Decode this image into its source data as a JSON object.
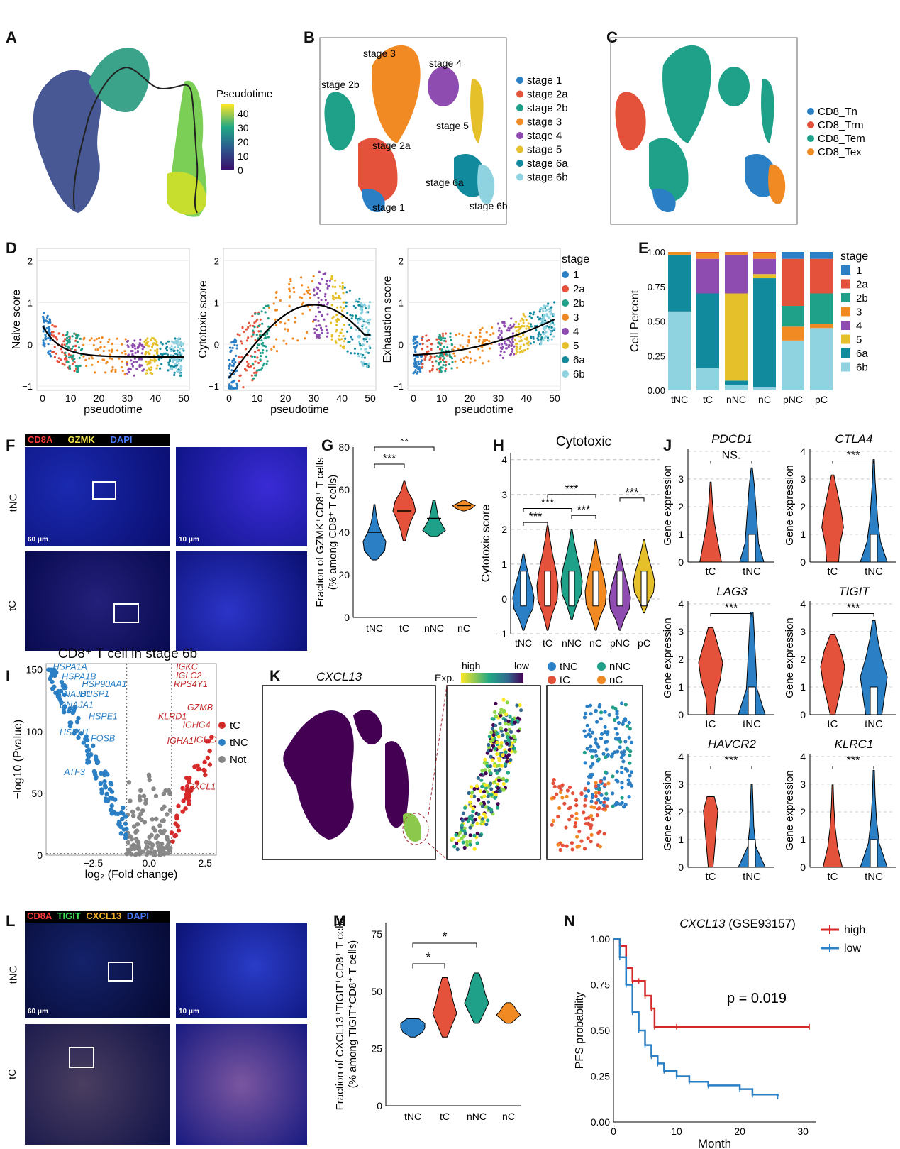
{
  "panels": {
    "A": {
      "letter": "A",
      "legend_title": "Pseudotime",
      "legend_ticks": [
        "40",
        "30",
        "20",
        "10",
        "0"
      ]
    },
    "B": {
      "letter": "B",
      "stages": [
        {
          "label": "stage 1",
          "color": "#2b7fc4"
        },
        {
          "label": "stage 2a",
          "color": "#e4523b"
        },
        {
          "label": "stage 2b",
          "color": "#1fa088"
        },
        {
          "label": "stage 3",
          "color": "#f28a23"
        },
        {
          "label": "stage 4",
          "color": "#8e4bb0"
        },
        {
          "label": "stage 5",
          "color": "#e6c02a"
        },
        {
          "label": "stage 6a",
          "color": "#128a9e"
        },
        {
          "label": "stage 6b",
          "color": "#8fd2e0"
        }
      ],
      "cluster_labels": [
        "stage 3",
        "stage 4",
        "stage 2b",
        "stage 5",
        "stage 2a",
        "stage 6a",
        "stage 1",
        "stage 6b"
      ]
    },
    "C": {
      "letter": "C",
      "types": [
        {
          "label": "CD8_Tn",
          "color": "#2b7fc4"
        },
        {
          "label": "CD8_Trm",
          "color": "#e4523b"
        },
        {
          "label": "CD8_Tem",
          "color": "#1fa088"
        },
        {
          "label": "CD8_Tex",
          "color": "#f28a23"
        }
      ]
    },
    "D": {
      "letter": "D",
      "legend_title": "stage",
      "legend_items": [
        "1",
        "2a",
        "2b",
        "3",
        "4",
        "5",
        "6a",
        "6b"
      ],
      "plots": [
        {
          "ylabel": "Naive score",
          "xlabel": "pseudotime",
          "yticks": [
            "2",
            "1",
            "0",
            "−1"
          ],
          "xticks": [
            "0",
            "10",
            "20",
            "30",
            "40",
            "50"
          ]
        },
        {
          "ylabel": "Cytotoxic score",
          "xlabel": "pseudotime",
          "yticks": [
            "2",
            "1",
            "0",
            "−1"
          ],
          "xticks": [
            "0",
            "10",
            "20",
            "30",
            "40",
            "50"
          ]
        },
        {
          "ylabel": "Exhaustion score",
          "xlabel": "pseudotime",
          "yticks": [
            "2",
            "1",
            "0",
            "−1"
          ],
          "xticks": [
            "0",
            "10",
            "20",
            "30",
            "40",
            "50"
          ]
        }
      ]
    },
    "E": {
      "letter": "E",
      "ylabel": "Cell Percent",
      "legend_title": "stage",
      "yticks": [
        "1.00",
        "0.75",
        "0.50",
        "0.25",
        "0.00"
      ]
    },
    "F": {
      "letter": "F",
      "stain": [
        "CD8A",
        "GZMK",
        "DAPI"
      ],
      "rows": [
        "tNC",
        "tC"
      ],
      "scale_big": "60 μm",
      "scale_small": "10 μm"
    },
    "G": {
      "letter": "G",
      "ylabel": "Fraction of GZMK⁺CD8⁺ T cells",
      "ylabel2": "(% among CD8⁺ T cells)",
      "yticks": [
        "80",
        "60",
        "40",
        "20",
        "0"
      ],
      "sig": [
        "***",
        "**"
      ]
    },
    "H": {
      "letter": "H",
      "title": "Cytotoxic",
      "ylabel": "Cytotoxic score",
      "yticks": [
        "4",
        "3",
        "2",
        "1",
        "0",
        "−1"
      ],
      "sig": [
        "***",
        "***",
        "***",
        "***",
        "***"
      ]
    },
    "I": {
      "letter": "I",
      "title": "CD8⁺ T cell in stage 6b",
      "ylabel": "−log10 (Pvalue)",
      "xlabel": "log₂ (Fold change)",
      "yticks": [
        "150",
        "100",
        "50",
        "0"
      ],
      "xticks": [
        "−2.5",
        "0.0",
        "2.5"
      ],
      "legend": [
        {
          "label": "tC",
          "color": "#d62a2a"
        },
        {
          "label": "tNC",
          "color": "#2b7fc4"
        },
        {
          "label": "Not",
          "color": "#888888"
        }
      ],
      "genes_left": [
        "HSPA1A",
        "HSPA1B",
        "HSP90AA1",
        "DNAJB1",
        "DUSP1",
        "DNAJA1",
        "HSPE1",
        "HSPH1",
        "FOSB",
        "ATF3"
      ],
      "genes_right": [
        "IGKC",
        "IGLC2",
        "RPS4Y1",
        "GZMB",
        "KLRD1",
        "IGHG4",
        "IGHA1",
        "IGHG",
        "CXCL1"
      ]
    },
    "J": {
      "letter": "J",
      "ylabel": "Gene expression",
      "groups": [
        "tC",
        "tNC"
      ],
      "genes": [
        {
          "name": "PDCD1",
          "sig": "NS."
        },
        {
          "name": "CTLA4",
          "sig": "***"
        },
        {
          "name": "LAG3",
          "sig": "***"
        },
        {
          "name": "TIGIT",
          "sig": "***"
        },
        {
          "name": "HAVCR2",
          "sig": "***"
        },
        {
          "name": "KLRC1",
          "sig": "***"
        }
      ]
    },
    "K": {
      "letter": "K",
      "gene": "CXCL13",
      "exp_label": "Exp.",
      "high": "high",
      "low": "low",
      "legend": [
        {
          "label": "tNC",
          "color": "#2b7fc4"
        },
        {
          "label": "nNC",
          "color": "#1fa088"
        },
        {
          "label": "tC",
          "color": "#e4523b"
        },
        {
          "label": "nC",
          "color": "#f28a23"
        }
      ]
    },
    "L": {
      "letter": "L",
      "stain": [
        "CD8A",
        "TIGIT",
        "CXCL13",
        "DAPI"
      ],
      "rows": [
        "tNC",
        "tC"
      ],
      "scale_big": "60 μm",
      "scale_small": "10 μm"
    },
    "M": {
      "letter": "M",
      "ylabel": "Fraction of CXCL13⁺TIGIT⁺CD8⁺ T cells",
      "ylabel2": "(% among TIGIT⁺CD8⁺ T cells)",
      "yticks": [
        "75",
        "50",
        "25",
        "0"
      ],
      "sig": [
        "*",
        "*"
      ]
    },
    "N": {
      "letter": "N",
      "title_gene": "CXCL13",
      "title_rest": " (GSE93157)",
      "ylabel": "PFS probability",
      "xlabel": "Month",
      "yticks": [
        "1.00",
        "0.75",
        "0.50",
        "0.25",
        "0.00"
      ],
      "xticks": [
        "0",
        "10",
        "20",
        "30"
      ],
      "pvalue": "p = 0.019",
      "legend": [
        {
          "label": "high",
          "color": "#d62a2a"
        },
        {
          "label": "low",
          "color": "#2b7fc4"
        }
      ]
    }
  },
  "colors": {
    "c1": "#2b7fc4",
    "c2a": "#e4523b",
    "c2b": "#1fa088",
    "c3": "#f28a23",
    "c4": "#8e4bb0",
    "c5": "#e6c02a",
    "c6a": "#128a9e",
    "c6b": "#8fd2e0"
  },
  "chart_data": [
    {
      "type": "bar",
      "id": "E",
      "categories": [
        "tNC",
        "tC",
        "nNC",
        "nC",
        "pNC",
        "pC"
      ],
      "series": [
        {
          "name": "1",
          "values": [
            0.0,
            0.0,
            0.0,
            0.0,
            0.05,
            0.05
          ]
        },
        {
          "name": "2a",
          "values": [
            0.0,
            0.01,
            0.0,
            0.01,
            0.34,
            0.25
          ]
        },
        {
          "name": "2b",
          "values": [
            0.0,
            0.0,
            0.0,
            0.0,
            0.15,
            0.22
          ]
        },
        {
          "name": "3",
          "values": [
            0.02,
            0.04,
            0.02,
            0.04,
            0.1,
            0.03
          ]
        },
        {
          "name": "4",
          "values": [
            0.0,
            0.25,
            0.28,
            0.11,
            0.0,
            0.0
          ]
        },
        {
          "name": "5",
          "values": [
            0.0,
            0.0,
            0.63,
            0.03,
            0.0,
            0.0
          ]
        },
        {
          "name": "6a",
          "values": [
            0.41,
            0.54,
            0.03,
            0.79,
            0.0,
            0.0
          ]
        },
        {
          "name": "6b",
          "values": [
            0.57,
            0.16,
            0.04,
            0.02,
            0.36,
            0.45
          ]
        }
      ],
      "ylabel": "Cell Percent",
      "ylim": [
        0,
        1
      ]
    },
    {
      "type": "line",
      "id": "N",
      "x_label": "Month",
      "y_label": "PFS probability",
      "xlim": [
        0,
        32
      ],
      "ylim": [
        0,
        1
      ],
      "series": [
        {
          "name": "high",
          "x": [
            0,
            1,
            2,
            3,
            4,
            5,
            6,
            6.5,
            10,
            31
          ],
          "y": [
            1.0,
            0.96,
            0.84,
            0.77,
            0.77,
            0.69,
            0.62,
            0.52,
            0.52,
            0.52
          ]
        },
        {
          "name": "low",
          "x": [
            0,
            1,
            2,
            3,
            4,
            5,
            6,
            7,
            8,
            10,
            12,
            15,
            20,
            22,
            26
          ],
          "y": [
            1.0,
            0.9,
            0.75,
            0.6,
            0.5,
            0.42,
            0.36,
            0.32,
            0.28,
            0.25,
            0.22,
            0.2,
            0.18,
            0.15,
            0.14
          ]
        }
      ]
    }
  ]
}
